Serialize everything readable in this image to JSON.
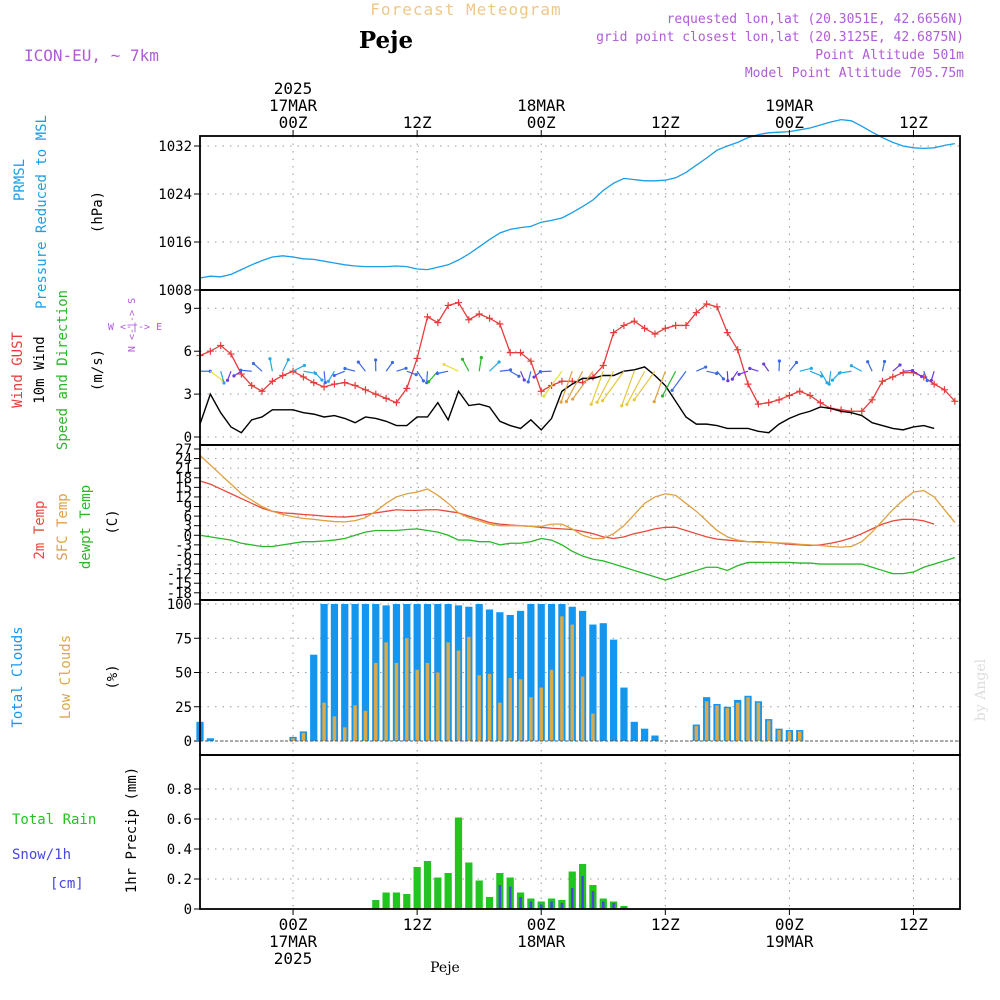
{
  "header": {
    "title": "Forecast Meteogram",
    "location": "Peje",
    "model": "ICON-EU, ~ 7km",
    "requested": "requested lon,lat (20.3051E, 42.6656N)",
    "grid_point": "grid point closest lon,lat (20.3125E, 42.6875N)",
    "point_alt": "Point Altitude 501m",
    "model_alt": "Model Point Altitude 705.75m",
    "credit": "by Angel",
    "footer_location": "Peje"
  },
  "colors": {
    "pressure": "#1a9ee6",
    "gust": "#e63c3c",
    "wind": "#000000",
    "purple": "#b05cd9",
    "temp2m": "#e64a3c",
    "sfc": "#e0a040",
    "dew": "#2ab82a",
    "totcloud": "#1596ee",
    "lowcloud": "#d9a94a",
    "rain": "#22c422",
    "snow": "#4646e0"
  },
  "time_axis": {
    "top": [
      {
        "h": 0,
        "lines": [
          "2025",
          "17MAR",
          "00Z"
        ]
      },
      {
        "h": 12,
        "lines": [
          "12Z"
        ]
      },
      {
        "h": 24,
        "lines": [
          "18MAR",
          "00Z"
        ]
      },
      {
        "h": 36,
        "lines": [
          "12Z"
        ]
      },
      {
        "h": 48,
        "lines": [
          "19MAR",
          "00Z"
        ]
      },
      {
        "h": 60,
        "lines": [
          "12Z"
        ]
      }
    ],
    "bottom": [
      {
        "h": 0,
        "lines": [
          "00Z",
          "17MAR",
          "2025"
        ]
      },
      {
        "h": 12,
        "lines": [
          "12Z"
        ]
      },
      {
        "h": 24,
        "lines": [
          "00Z",
          "18MAR"
        ]
      },
      {
        "h": 36,
        "lines": [
          "12Z"
        ]
      },
      {
        "h": 48,
        "lines": [
          "00Z",
          "19MAR"
        ]
      },
      {
        "h": 60,
        "lines": [
          "12Z"
        ]
      }
    ]
  },
  "panel_labels": {
    "pressure": {
      "name": "PRMSL",
      "desc": "Pressure Reduced to MSL",
      "unit": "(hPa)"
    },
    "wind": {
      "gust": "Wind GUST",
      "wind": "10m Wind",
      "dir": "Speed and Direction",
      "unit": "(m/s)",
      "compass_ns": "N <-|-> S",
      "compass_we": "W <-|-> E"
    },
    "temp": {
      "t2m": "2m Temp",
      "sfc": "SFC Temp",
      "dew": "dewpt Temp",
      "unit": "(C)"
    },
    "clouds": {
      "total": "Total Clouds",
      "low": "Low Clouds",
      "unit": "(%)"
    },
    "precip": {
      "rain": "Total  Rain",
      "snow": "Snow/1h",
      "snow_unit": "[cm]",
      "unit": "1hr Precip (mm)"
    }
  },
  "chart_data": [
    {
      "type": "line",
      "title": "PRMSL Pressure Reduced to MSL",
      "ylabel": "(hPa)",
      "ylim": [
        1008,
        1033
      ],
      "yticks": [
        1008,
        1016,
        1024,
        1032
      ],
      "x_hours": [
        -9,
        -8,
        -7,
        -6,
        -5,
        -4,
        -3,
        -2,
        -1,
        0,
        1,
        2,
        3,
        4,
        5,
        6,
        7,
        8,
        9,
        10,
        11,
        12,
        13,
        14,
        15,
        16,
        17,
        18,
        19,
        20,
        21,
        22,
        23,
        24,
        25,
        26,
        27,
        28,
        29,
        30,
        31,
        32,
        33,
        34,
        35,
        36,
        37,
        38,
        39,
        40,
        41,
        42,
        43,
        44,
        45,
        46,
        47,
        48,
        49,
        50,
        51,
        52,
        53,
        54,
        55,
        56,
        57,
        58,
        59,
        60,
        61,
        62,
        63,
        64
      ],
      "values": [
        1010.0,
        1010.3,
        1010.2,
        1010.6,
        1011.4,
        1012.2,
        1012.9,
        1013.5,
        1013.7,
        1013.5,
        1013.2,
        1013.1,
        1012.8,
        1012.5,
        1012.2,
        1012.0,
        1011.9,
        1011.9,
        1011.9,
        1012.0,
        1011.9,
        1011.5,
        1011.4,
        1011.8,
        1012.2,
        1013.0,
        1014.0,
        1015.2,
        1016.4,
        1017.5,
        1018.1,
        1018.4,
        1018.6,
        1019.3,
        1019.6,
        1020.0,
        1020.9,
        1021.9,
        1023.0,
        1024.6,
        1025.8,
        1026.6,
        1026.4,
        1026.2,
        1026.2,
        1026.3,
        1026.7,
        1027.6,
        1028.8,
        1030.0,
        1031.3,
        1032.0,
        1032.6,
        1033.4,
        1033.9,
        1034.2,
        1034.3,
        1034.4,
        1034.7,
        1035.0,
        1035.5,
        1036.0,
        1036.4,
        1036.2,
        1035.3,
        1034.3,
        1033.4,
        1032.6,
        1032.0,
        1031.7,
        1031.6,
        1031.7,
        1032.1,
        1032.4
      ]
    },
    {
      "type": "line",
      "title": "Wind GUST / 10m Wind Speed and Direction",
      "ylabel": "(m/s)",
      "ylim": [
        0,
        10
      ],
      "yticks": [
        0,
        3,
        6,
        9
      ],
      "series": [
        {
          "name": "Wind GUST",
          "x_start": -9,
          "values": [
            5.7,
            6.0,
            6.4,
            5.8,
            4.4,
            3.6,
            3.2,
            3.9,
            4.3,
            4.6,
            4.2,
            3.8,
            3.5,
            3.7,
            3.8,
            3.6,
            3.3,
            3.0,
            2.7,
            2.4,
            3.4,
            5.5,
            8.4,
            8.0,
            9.2,
            9.4,
            8.2,
            8.6,
            8.3,
            7.9,
            5.9,
            5.9,
            5.3,
            3.2,
            3.6,
            3.9,
            3.9,
            3.8,
            4.2,
            5.0,
            7.3,
            7.8,
            8.1,
            7.6,
            7.2,
            7.6,
            7.8,
            7.8,
            8.7,
            9.3,
            9.1,
            7.3,
            6.1,
            3.7,
            2.3,
            2.4,
            2.6,
            2.9,
            3.2,
            2.9,
            2.4,
            2.0,
            1.9,
            1.8,
            1.8,
            2.6,
            3.9,
            4.2,
            4.5,
            4.5,
            4.2,
            3.7,
            3.3,
            2.5
          ]
        },
        {
          "name": "10m Wind",
          "x_start": -9,
          "values": [
            0.9,
            3.0,
            1.7,
            0.7,
            0.3,
            1.2,
            1.4,
            1.9,
            1.9,
            1.9,
            1.7,
            1.6,
            1.4,
            1.5,
            1.3,
            1.0,
            1.4,
            1.3,
            1.1,
            0.8,
            0.8,
            1.4,
            1.4,
            2.4,
            1.2,
            3.2,
            2.2,
            2.3,
            2.1,
            1.1,
            0.8,
            0.6,
            1.2,
            0.5,
            1.3,
            3.2,
            3.7,
            4.1,
            4.1,
            4.3,
            4.3,
            4.6,
            4.7,
            4.9,
            4.3,
            3.6,
            2.5,
            1.4,
            0.9,
            0.9,
            0.8,
            0.6,
            0.6,
            0.6,
            0.4,
            0.3,
            0.9,
            1.3,
            1.6,
            1.8,
            2.1,
            2.0,
            1.8,
            1.7,
            1.5,
            1.0,
            0.8,
            0.6,
            0.5,
            0.7,
            0.8,
            0.6
          ]
        }
      ]
    },
    {
      "type": "line",
      "title": "2m Temp / SFC Temp / dewpt Temp",
      "ylabel": "(C)",
      "ylim": [
        -19,
        27
      ],
      "yticks": [
        -18,
        -15,
        -12,
        -9,
        -6,
        -3,
        0,
        3,
        6,
        9,
        12,
        15,
        18,
        21,
        24,
        27
      ],
      "x_start": -9,
      "series": [
        {
          "name": "2m Temp",
          "values": [
            17,
            16,
            14.5,
            13,
            11.5,
            10,
            8.5,
            7.5,
            7,
            6.8,
            6.5,
            6.3,
            6,
            5.8,
            5.7,
            6,
            6.5,
            7,
            7.5,
            8,
            7.8,
            7.8,
            8,
            8,
            7.5,
            7,
            6,
            5,
            4,
            3.5,
            3.2,
            3,
            2.8,
            2.5,
            2.2,
            2,
            1.8,
            1.2,
            0.5,
            -0.5,
            -1,
            -0.5,
            0.5,
            1.2,
            2,
            2.5,
            2.5,
            1.5,
            0.5,
            -0.5,
            -1.2,
            -1.5,
            -1.8,
            -2,
            -2,
            -2.2,
            -2.5,
            -2.8,
            -3,
            -3.2,
            -3,
            -2.5,
            -1.8,
            -0.8,
            0.5,
            2,
            3.5,
            4.5,
            5,
            5,
            4.5,
            3.5
          ]
        },
        {
          "name": "SFC Temp",
          "values": [
            25,
            22,
            19,
            16,
            13,
            11,
            9,
            7.5,
            6.5,
            5.8,
            5.3,
            5,
            4.6,
            4.3,
            4.2,
            4.6,
            5.5,
            7.5,
            10,
            12,
            13,
            13.5,
            14.5,
            12.5,
            10,
            7,
            5.5,
            4.5,
            3.5,
            3,
            3,
            3,
            2.8,
            2.8,
            3.5,
            3.5,
            2,
            0,
            -1,
            -1,
            0.5,
            3,
            6.5,
            10,
            12,
            13,
            12.5,
            10,
            7.5,
            4.5,
            1.5,
            -0.5,
            -1.5,
            -2,
            -2.2,
            -2.2,
            -2.4,
            -2.5,
            -2.8,
            -3,
            -3.2,
            -3.5,
            -3.7,
            -3.5,
            -2,
            1,
            4.5,
            8,
            11,
            13.5,
            14,
            12,
            8,
            4
          ]
        },
        {
          "name": "dewpt Temp",
          "values": [
            0,
            -0.5,
            -1,
            -1.5,
            -2.5,
            -3,
            -3.5,
            -3.5,
            -3,
            -2.5,
            -2,
            -2,
            -1.8,
            -1.5,
            -1,
            0,
            1,
            1.5,
            1.5,
            1.5,
            1.8,
            2,
            1.5,
            1,
            0,
            -1.5,
            -1.5,
            -2,
            -2,
            -3,
            -2.5,
            -2.5,
            -2,
            -1,
            -1.5,
            -3,
            -5,
            -6.5,
            -7.5,
            -8,
            -9,
            -10,
            -11,
            -12,
            -13,
            -14,
            -13,
            -12,
            -11,
            -10,
            -10,
            -11,
            -9.5,
            -8.5,
            -8.5,
            -8.5,
            -8.5,
            -8.5,
            -8.7,
            -8.7,
            -9,
            -9,
            -9,
            -9,
            -9,
            -10,
            -11,
            -12,
            -12,
            -11.5,
            -10,
            -9,
            -8,
            -7
          ]
        }
      ]
    },
    {
      "type": "bar",
      "title": "Total Clouds / Low Clouds",
      "ylabel": "(%)",
      "ylim": [
        0,
        100
      ],
      "yticks": [
        0,
        25,
        50,
        75,
        100
      ],
      "x_start": -9,
      "series": [
        {
          "name": "Total Clouds",
          "values": [
            14,
            2,
            0,
            0,
            0,
            0,
            0,
            0,
            0,
            3,
            7,
            63,
            100,
            100,
            100,
            100,
            100,
            100,
            99,
            100,
            100,
            100,
            100,
            100,
            100,
            99,
            98,
            100,
            96,
            94,
            92,
            95,
            100,
            100,
            100,
            100,
            98,
            95,
            85,
            86,
            74,
            39,
            14,
            9,
            4,
            0,
            0,
            0,
            12,
            32,
            27,
            25,
            30,
            33,
            29,
            16,
            9,
            8,
            8,
            0,
            0,
            0,
            0,
            0,
            0,
            0,
            0,
            0,
            0,
            0,
            0,
            0,
            0,
            0
          ]
        },
        {
          "name": "Low Clouds",
          "values": [
            0,
            0,
            0,
            0,
            0,
            0,
            0,
            0,
            0,
            2,
            6,
            0,
            28,
            18,
            10,
            26,
            22,
            57,
            72,
            57,
            75,
            52,
            57,
            50,
            72,
            66,
            76,
            48,
            49,
            28,
            46,
            45,
            32,
            39,
            52,
            91,
            85,
            47,
            20,
            0,
            0,
            0,
            0,
            0,
            0,
            0,
            0,
            0,
            11,
            29,
            26,
            24,
            28,
            32,
            28,
            15,
            8,
            7,
            7,
            0,
            0,
            0,
            0,
            0,
            0,
            0,
            0,
            0,
            0,
            0,
            0,
            0,
            0,
            0
          ]
        }
      ]
    },
    {
      "type": "bar",
      "title": "Total Rain / Snow/1h",
      "ylabel": "1hr Precip (mm)",
      "ylim": [
        0,
        1.0
      ],
      "yticks": [
        0,
        0.2,
        0.4,
        0.6,
        0.8
      ],
      "x_start": -9,
      "series": [
        {
          "name": "Total Rain",
          "values": [
            0,
            0,
            0,
            0,
            0,
            0,
            0,
            0,
            0,
            0,
            0,
            0,
            0,
            0,
            0,
            0,
            0,
            0.06,
            0.11,
            0.11,
            0.1,
            0.28,
            0.32,
            0.21,
            0.24,
            0.61,
            0.31,
            0.19,
            0.08,
            0.24,
            0.21,
            0.11,
            0.07,
            0.05,
            0.07,
            0.06,
            0.25,
            0.3,
            0.16,
            0.07,
            0.05,
            0.02,
            0,
            0,
            0,
            0,
            0,
            0,
            0,
            0,
            0,
            0,
            0,
            0,
            0,
            0,
            0,
            0,
            0,
            0,
            0,
            0,
            0,
            0,
            0,
            0,
            0,
            0,
            0,
            0,
            0,
            0,
            0,
            0
          ]
        },
        {
          "name": "Snow/1h",
          "values": [
            0,
            0,
            0,
            0,
            0,
            0,
            0,
            0,
            0,
            0,
            0,
            0,
            0,
            0,
            0,
            0,
            0,
            0,
            0,
            0,
            0,
            0,
            0,
            0,
            0,
            0,
            0,
            0,
            0,
            0.16,
            0.15,
            0.08,
            0.05,
            0.03,
            0.05,
            0.04,
            0.14,
            0.22,
            0.12,
            0.05,
            0.04,
            0.01,
            0,
            0,
            0,
            0,
            0,
            0,
            0,
            0,
            0,
            0,
            0,
            0,
            0,
            0,
            0,
            0,
            0,
            0,
            0,
            0,
            0,
            0,
            0,
            0,
            0,
            0,
            0,
            0,
            0,
            0,
            0,
            0
          ]
        }
      ]
    }
  ]
}
